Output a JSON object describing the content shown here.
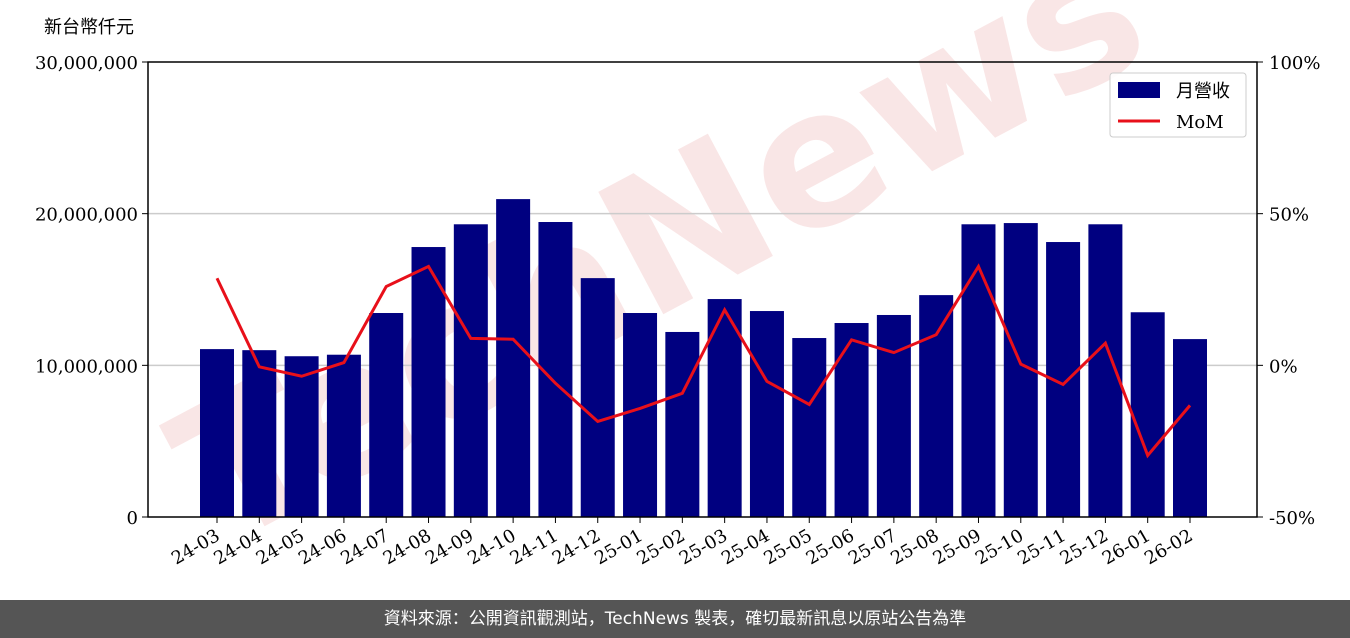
{
  "chart_data": {
    "type": "bar-line",
    "ylabel": "新台幣仟元",
    "watermark": "TechNews",
    "categories": [
      "24-03",
      "24-04",
      "24-05",
      "24-06",
      "24-07",
      "24-08",
      "24-09",
      "24-10",
      "24-11",
      "24-12",
      "25-01",
      "25-02",
      "25-03",
      "25-04",
      "25-05",
      "25-06",
      "25-07",
      "25-08",
      "25-09",
      "25-10",
      "25-11",
      "25-12",
      "26-01",
      "26-02"
    ],
    "series": [
      {
        "name": "月營收",
        "type": "bar",
        "color": "#000080",
        "values": [
          11070000,
          11000000,
          10600000,
          10700000,
          13450000,
          17800000,
          19300000,
          20960000,
          19450000,
          15750000,
          13450000,
          12200000,
          14370000,
          13580000,
          11800000,
          12790000,
          13320000,
          14630000,
          19300000,
          19380000,
          18130000,
          19300000,
          13500000,
          11730000
        ]
      },
      {
        "name": "MoM",
        "type": "line",
        "axis": "y2",
        "color": "#e8101a",
        "values": [
          28.7,
          -0.5,
          -3.6,
          0.9,
          26,
          32.6,
          8.9,
          8.6,
          -5.9,
          -18.5,
          -14.2,
          -9.2,
          18.3,
          -5.3,
          -12.9,
          8.4,
          4.2,
          10.1,
          32.6,
          0.4,
          -6.3,
          7.3,
          -29.7,
          -13.2
        ]
      }
    ],
    "ylim": [
      0,
      30000000
    ],
    "yticks": [
      0,
      {
        "value": 10000000,
        "label": "10,000,000"
      },
      {
        "value": 20000000,
        "label": "20,000,000"
      },
      {
        "value": 30000000,
        "label": "30,000,000"
      }
    ],
    "y2lim": [
      -50,
      100
    ],
    "y2ticks": [
      {
        "value": -50,
        "label": "-50%"
      },
      {
        "value": 0,
        "label": "0%"
      },
      {
        "value": 50,
        "label": "50%"
      },
      {
        "value": 100,
        "label": "100%"
      }
    ],
    "grid": true,
    "legend": "upper right"
  },
  "footer": "資料來源：公開資訊觀測站，TechNews 製表，確切最新訊息以原站公告為準"
}
